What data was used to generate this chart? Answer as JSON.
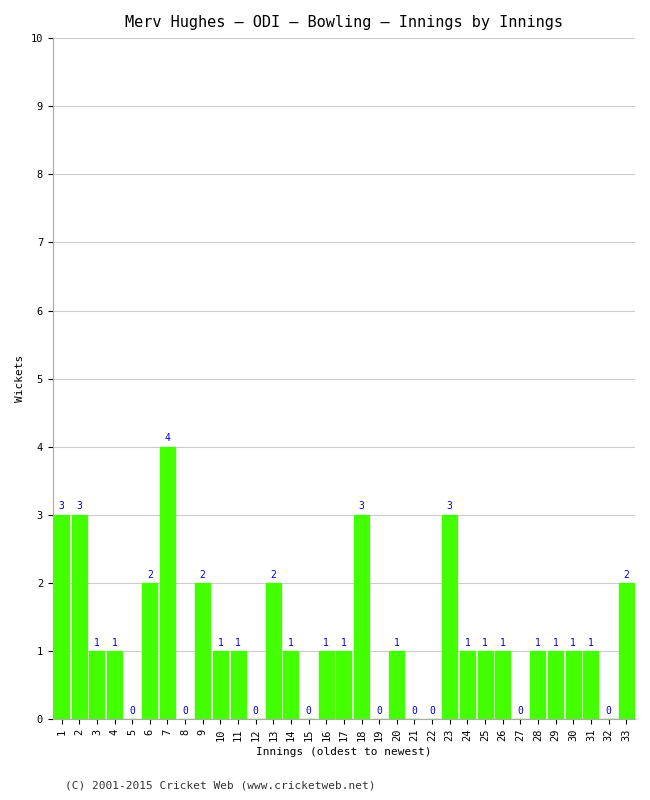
{
  "title": "Merv Hughes – ODI – Bowling – Innings by Innings",
  "xlabel": "Innings (oldest to newest)",
  "ylabel": "Wickets",
  "bar_color": "#44ff00",
  "label_color": "#0000cc",
  "background_color": "#ffffff",
  "grid_color": "#cccccc",
  "ylim": [
    0,
    10
  ],
  "yticks": [
    0,
    1,
    2,
    3,
    4,
    5,
    6,
    7,
    8,
    9,
    10
  ],
  "innings": [
    1,
    2,
    3,
    4,
    5,
    6,
    7,
    8,
    9,
    10,
    11,
    12,
    13,
    14,
    15,
    16,
    17,
    18,
    19,
    20,
    21,
    22,
    23,
    24,
    25,
    26,
    27,
    28,
    29,
    30,
    31,
    32,
    33
  ],
  "wickets": [
    3,
    3,
    1,
    1,
    0,
    2,
    4,
    0,
    2,
    1,
    1,
    0,
    2,
    1,
    0,
    1,
    1,
    3,
    0,
    1,
    0,
    0,
    3,
    1,
    1,
    1,
    0,
    1,
    1,
    1,
    1,
    0,
    2
  ],
  "footer": "(C) 2001-2015 Cricket Web (www.cricketweb.net)",
  "title_fontsize": 11,
  "label_fontsize": 8,
  "tick_fontsize": 7.5,
  "footer_fontsize": 8,
  "bar_label_fontsize": 7
}
